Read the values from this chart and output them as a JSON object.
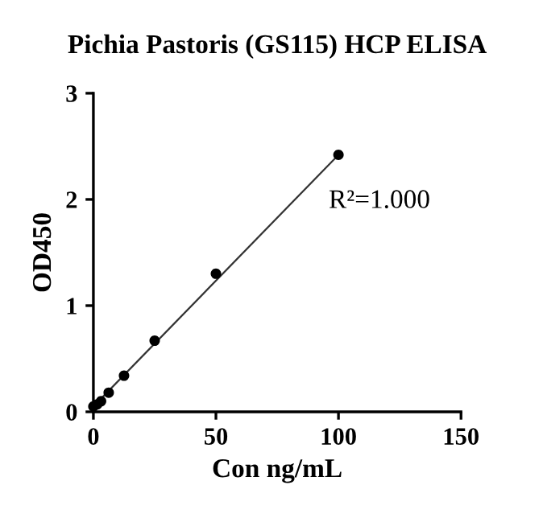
{
  "chart_data": {
    "type": "scatter",
    "title": "Pichia Pastoris (GS115) HCP ELISA",
    "xlabel": "Con ng/mL",
    "ylabel": "OD450",
    "annotations": [
      "R²=1.000"
    ],
    "xlim": [
      0,
      150
    ],
    "ylim": [
      0,
      3
    ],
    "xticks": [
      0,
      50,
      100,
      150
    ],
    "yticks": [
      0,
      1,
      2,
      3
    ],
    "grid": false,
    "series": [
      {
        "marker": "circle",
        "color": "#000000",
        "x": [
          0,
          1.56,
          3.125,
          6.25,
          12.5,
          25,
          50,
          100
        ],
        "values": [
          0.05,
          0.07,
          0.1,
          0.18,
          0.34,
          0.67,
          1.3,
          2.42
        ]
      },
      {
        "type": "line",
        "color": "#333333",
        "line_style": "solid",
        "x": [
          0,
          100
        ],
        "values": [
          0.05,
          2.42
        ]
      }
    ]
  }
}
